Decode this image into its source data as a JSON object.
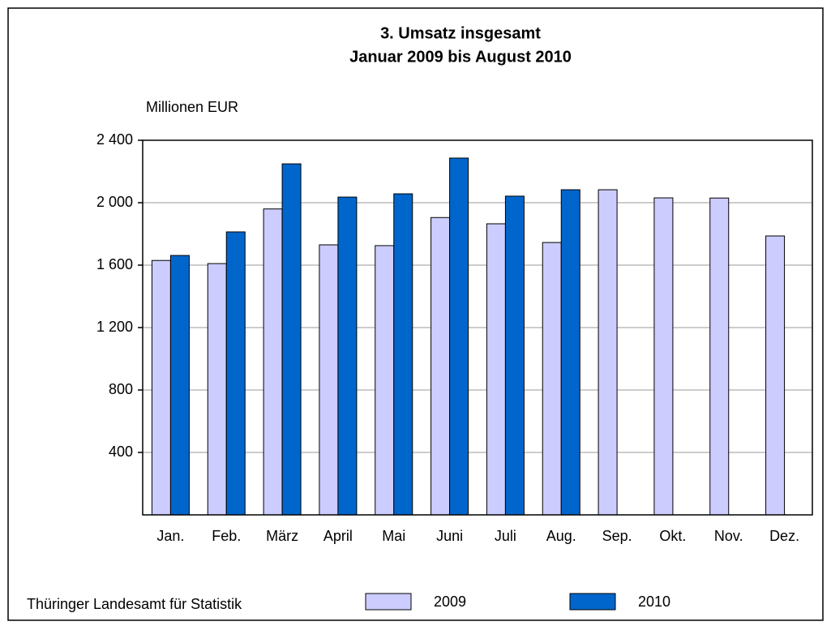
{
  "chart_data": {
    "type": "bar",
    "title": "3. Umsatz insgesamt",
    "subtitle": "Januar 2009 bis August 2010",
    "y_label": "Millionen EUR",
    "source": "Thüringer Landesamt für Statistik",
    "categories": [
      "Jan.",
      "Feb.",
      "März",
      "April",
      "Mai",
      "Juni",
      "Juli",
      "Aug.",
      "Sep.",
      "Okt.",
      "Nov.",
      "Dez."
    ],
    "series": [
      {
        "name": "2009",
        "color": "#ccccff",
        "values": [
          1630,
          1610,
          1960,
          1730,
          1725,
          1905,
          1865,
          1745,
          2083,
          2031,
          2030,
          1787
        ]
      },
      {
        "name": "2010",
        "color": "#0066cc",
        "values": [
          1662,
          1813,
          2249,
          2036,
          2057,
          2286,
          2042,
          2083,
          null,
          null,
          null,
          null
        ]
      }
    ],
    "ylim": [
      0,
      2400
    ],
    "yticks": [
      400,
      800,
      {
        "value": 1200,
        "label": "1 200"
      },
      {
        "value": 1600,
        "label": "1 600"
      },
      {
        "value": 2000,
        "label": "2 000"
      },
      {
        "value": 2400,
        "label": "2 400"
      }
    ],
    "grid": true
  }
}
